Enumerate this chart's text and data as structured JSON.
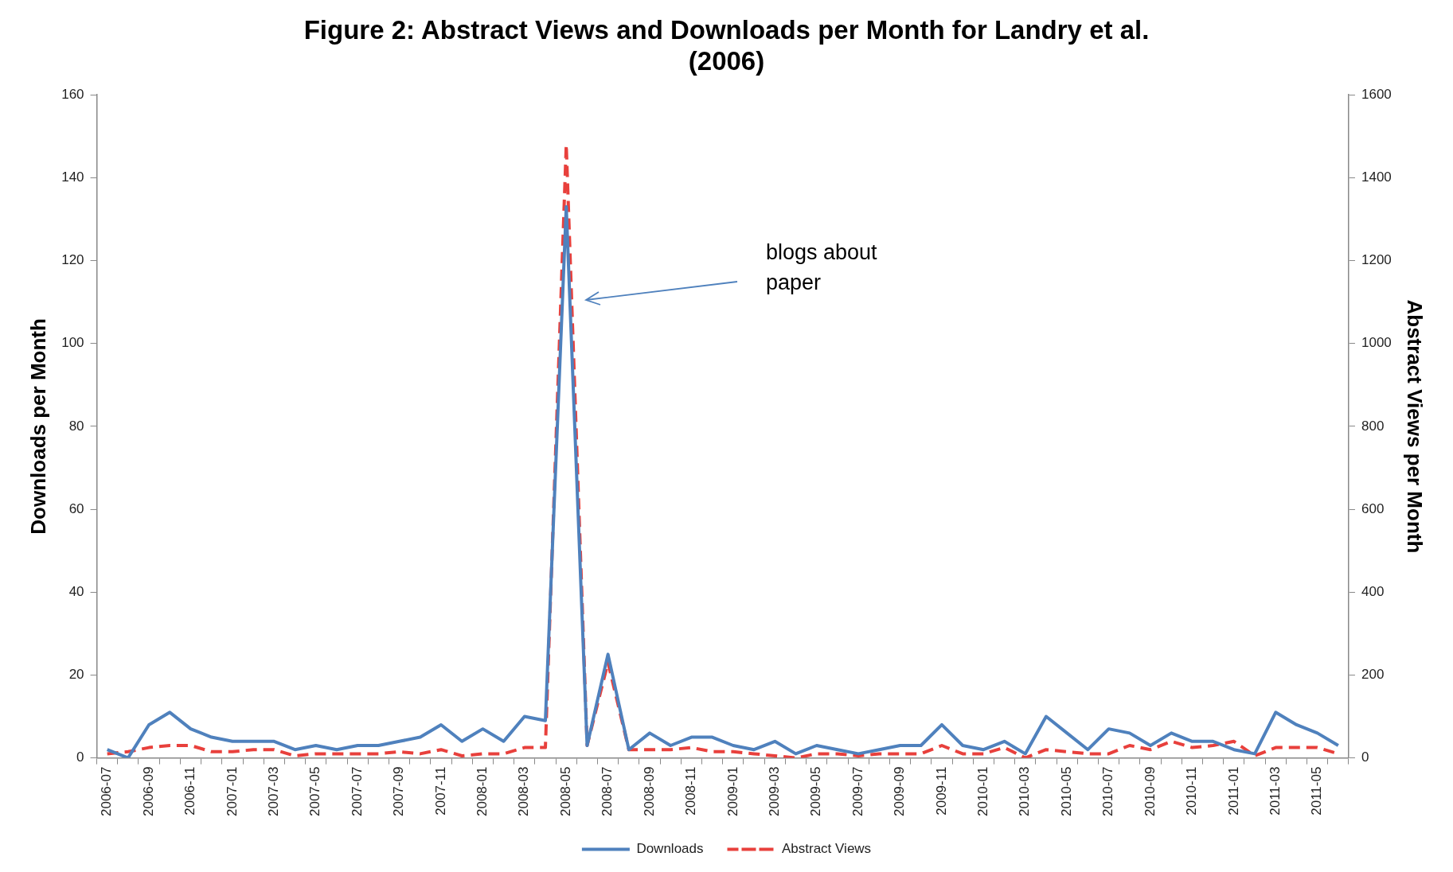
{
  "chart_data": {
    "type": "line",
    "title": "Figure 2: Abstract Views and Downloads per Month for Landry et al. (2006)",
    "ylabel": "Downloads per Month",
    "y2label": "Abstract Views per Month",
    "categories": [
      "2006-07",
      null,
      "2006-09",
      null,
      "2006-11",
      null,
      "2007-01",
      null,
      "2007-03",
      null,
      "2007-05",
      null,
      "2007-07",
      null,
      "2007-09",
      null,
      "2007-11",
      null,
      "2008-01",
      null,
      "2008-03",
      null,
      "2008-05",
      null,
      "2008-07",
      null,
      "2008-09",
      null,
      "2008-11",
      null,
      "2009-01",
      null,
      "2009-03",
      null,
      "2009-05",
      null,
      "2009-07",
      null,
      "2009-09",
      null,
      "2009-11",
      null,
      "2010-01",
      null,
      "2010-03",
      null,
      "2010-05",
      null,
      "2010-07",
      null,
      "2010-09",
      null,
      "2010-11",
      null,
      "2011-01",
      null,
      "2011-03",
      null,
      "2011-05",
      null
    ],
    "series": [
      {
        "name": "Downloads",
        "color": "#4f81bd",
        "line_style": "solid",
        "values": [
          2,
          0,
          8,
          11,
          7,
          5,
          4,
          4,
          4,
          2,
          3,
          2,
          3,
          3,
          4,
          5,
          8,
          4,
          7,
          4,
          10,
          9,
          133,
          3,
          25,
          2,
          6,
          3,
          5,
          5,
          3,
          2,
          4,
          1,
          3,
          2,
          1,
          2,
          3,
          3,
          8,
          3,
          2,
          4,
          1,
          10,
          6,
          2,
          7,
          6,
          3,
          6,
          4,
          4,
          2,
          1,
          11,
          8,
          6,
          3
        ]
      },
      {
        "name": "Abstract Views",
        "color": "#e8403c",
        "line_style": "dashed",
        "axis": "y2",
        "values": [
          10,
          15,
          25,
          30,
          30,
          15,
          15,
          20,
          20,
          5,
          10,
          10,
          10,
          10,
          15,
          10,
          20,
          5,
          10,
          10,
          25,
          25,
          1480,
          30,
          230,
          20,
          20,
          20,
          25,
          15,
          15,
          10,
          5,
          0,
          10,
          10,
          5,
          10,
          10,
          10,
          30,
          10,
          10,
          25,
          0,
          20,
          15,
          10,
          10,
          30,
          20,
          40,
          25,
          30,
          40,
          5,
          25,
          25,
          25,
          10
        ]
      }
    ],
    "ylim": [
      0,
      160
    ],
    "yticks": [
      0,
      20,
      40,
      60,
      80,
      100,
      120,
      140,
      160
    ],
    "y2lim": [
      0,
      1600
    ],
    "y2ticks": [
      0,
      200,
      400,
      600,
      800,
      1000,
      1200,
      1400,
      1600
    ],
    "annotations": [
      "blogs about paper"
    ],
    "grid": false,
    "legend": "bottom",
    "marker": "none"
  }
}
